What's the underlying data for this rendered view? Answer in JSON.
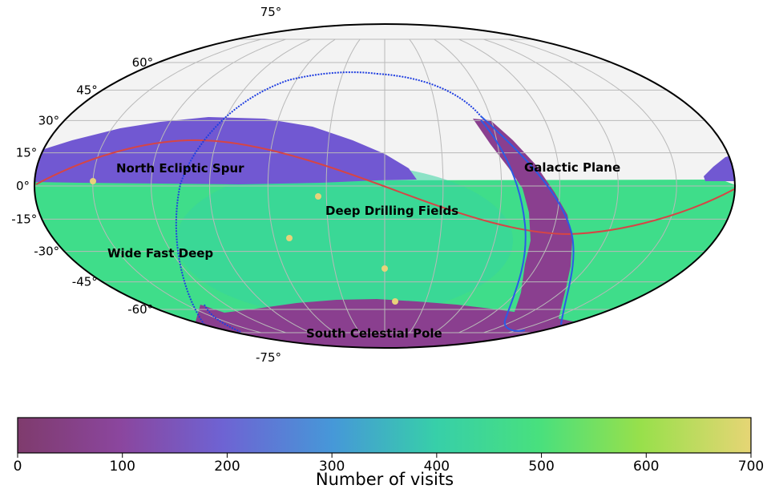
{
  "chart_data": {
    "type": "heatmap",
    "projection": "mollweide",
    "title": "",
    "lat_ticks": [
      {
        "value": 75,
        "label": "75°"
      },
      {
        "value": 60,
        "label": "60°"
      },
      {
        "value": 45,
        "label": "45°"
      },
      {
        "value": 30,
        "label": "30°"
      },
      {
        "value": 15,
        "label": "15°"
      },
      {
        "value": 0,
        "label": "0°"
      },
      {
        "value": -15,
        "label": "-15°"
      },
      {
        "value": -30,
        "label": "-30°"
      },
      {
        "value": -45,
        "label": "-45°"
      },
      {
        "value": -60,
        "label": "-60°"
      },
      {
        "value": -75,
        "label": "-75°"
      }
    ],
    "regions": [
      {
        "name": "North Ecliptic Spur",
        "label": "North Ecliptic Spur",
        "visits": 150
      },
      {
        "name": "Galactic Plane",
        "label": "Galactic Plane",
        "visits": 100
      },
      {
        "name": "Deep Drilling Fields",
        "label": "Deep Drilling Fields",
        "visits": 680
      },
      {
        "name": "Wide Fast Deep",
        "label": "Wide Fast Deep",
        "visits": 480
      },
      {
        "name": "South Celestial Pole",
        "label": "South Celestial Pole",
        "visits": 80
      }
    ],
    "colorbar": {
      "label": "Number of visits",
      "min": 0,
      "max": 700,
      "ticks": [
        {
          "value": 0,
          "label": "0"
        },
        {
          "value": 100,
          "label": "100"
        },
        {
          "value": 200,
          "label": "200"
        },
        {
          "value": 300,
          "label": "300"
        },
        {
          "value": 400,
          "label": "400"
        },
        {
          "value": 500,
          "label": "500"
        },
        {
          "value": 600,
          "label": "600"
        },
        {
          "value": 700,
          "label": "700"
        }
      ]
    },
    "colors": {
      "uncovered": "#f3f3f3",
      "ecliptic_line": "#d64545",
      "galactic_boundary": "#1f3ee0",
      "grid": "#b9b9b9",
      "frame": "#000000"
    }
  }
}
